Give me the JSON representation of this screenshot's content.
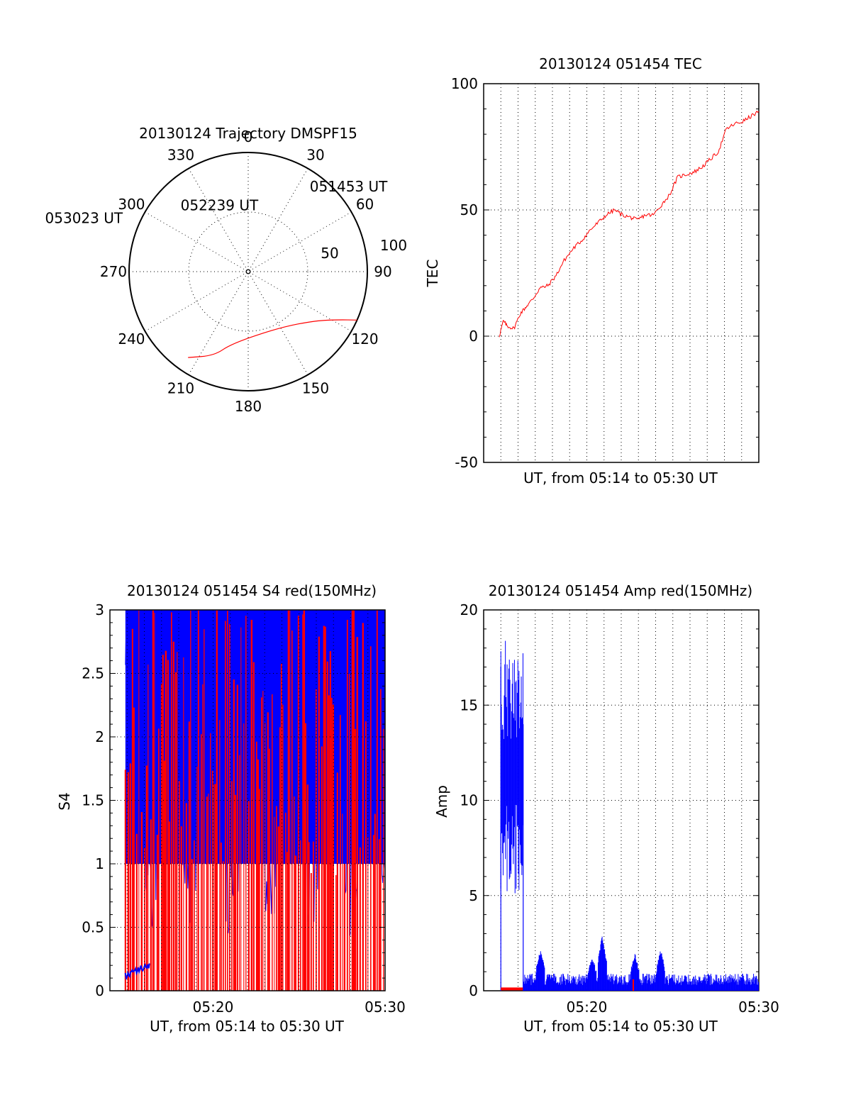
{
  "chart_data": [
    {
      "type": "polar",
      "title": "20130124 Trajectory DMSPF15",
      "angle_labels": [
        "0",
        "30",
        "60",
        "90",
        "120",
        "150",
        "180",
        "210",
        "240",
        "270",
        "300",
        "330"
      ],
      "radial_labels": [
        "50",
        "100"
      ],
      "rlim": [
        0,
        100
      ],
      "grid": true,
      "series": [
        {
          "color": "#ff0000",
          "points": [
            [
              35,
              -88
            ],
            [
              22,
              -76
            ],
            [
              13,
              -62
            ],
            [
              -30,
              -54
            ],
            [
              -54,
              -70
            ],
            [
              -62,
              -86
            ],
            [
              -66,
              -100
            ]
          ]
        }
      ],
      "annotations": [
        {
          "text": "051453 UT",
          "theta": 35,
          "r": 88
        },
        {
          "text": "052239 UT",
          "theta": -30,
          "r": 54
        },
        {
          "text": "053023 UT",
          "theta": -66,
          "r": 100
        }
      ]
    },
    {
      "type": "line",
      "title": "20130124 051454 TEC",
      "xlabel": "UT, from 05:14 to 05:30 UT",
      "ylabel": "TEC",
      "xlim": [
        0,
        16
      ],
      "ylim": [
        -50,
        100
      ],
      "yticks": [
        "100",
        "50",
        "0",
        "-50"
      ],
      "xticks": [],
      "grid": true,
      "series": [
        {
          "color": "#ff0000",
          "x": [
            0.0,
            0.25,
            0.5,
            0.9,
            1.3,
            1.7,
            2.1,
            2.5,
            3.0,
            3.5,
            4.0,
            4.6,
            5.1,
            5.6,
            6.1,
            6.6,
            7.1,
            7.6,
            8.1,
            8.5,
            9.0,
            9.5,
            10.0,
            10.5,
            11.0,
            11.5,
            12.0,
            12.5,
            13.0,
            13.5,
            14.0,
            14.5,
            15.0,
            15.5,
            16.0
          ],
          "y": [
            0,
            6,
            4,
            3,
            9,
            12,
            15,
            19,
            20,
            24,
            30,
            35,
            38,
            42,
            45,
            48,
            50,
            48,
            47,
            46,
            48,
            48,
            52,
            56,
            63,
            64,
            65,
            67,
            70,
            73,
            82,
            84,
            85,
            87,
            89
          ]
        }
      ]
    },
    {
      "type": "line",
      "title": "20130124 051454 S4 red(150MHz)",
      "xlabel": "UT, from 05:14 to 05:30 UT",
      "ylabel": "S4",
      "xlim": [
        0,
        16
      ],
      "ylim": [
        0,
        3
      ],
      "yticks": [
        "3",
        "2.5",
        "2",
        "1.5",
        "1",
        "0.5",
        "0"
      ],
      "xticks": [
        "05:20",
        "05:30"
      ],
      "xtick_values": [
        6,
        16
      ],
      "grid": true,
      "series": [
        {
          "color": "#0000ff",
          "style": "dense-noise",
          "x_range": [
            0.9,
            16
          ],
          "y_range": [
            0.1,
            3
          ]
        },
        {
          "color": "#ff0000",
          "style": "vertical-spikes",
          "x_range": [
            0.9,
            16
          ],
          "y_range": [
            0,
            3
          ]
        }
      ]
    },
    {
      "type": "line",
      "title": "20130124 051454 Amp red(150MHz)",
      "xlabel": "UT, from 05:14 to 05:30 UT",
      "ylabel": "Amp",
      "xlim": [
        0,
        16
      ],
      "ylim": [
        0,
        20
      ],
      "yticks": [
        "20",
        "15",
        "10",
        "5",
        "0"
      ],
      "xticks": [
        "05:20",
        "05:30"
      ],
      "xtick_values": [
        6,
        16
      ],
      "grid": true,
      "series": [
        {
          "color": "#0000ff",
          "style": "burst",
          "x_range": [
            1.0,
            2.3
          ],
          "y_range": [
            5,
            19
          ]
        },
        {
          "color": "#0000ff",
          "style": "noise",
          "x_range": [
            2.3,
            16
          ],
          "y_range": [
            0,
            2.7
          ]
        },
        {
          "color": "#ff0000",
          "style": "low",
          "x_range": [
            1.0,
            2.3
          ],
          "y_range": [
            0,
            0.2
          ]
        }
      ]
    }
  ]
}
